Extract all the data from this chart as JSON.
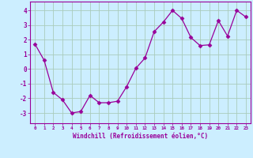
{
  "x": [
    0,
    1,
    2,
    3,
    4,
    5,
    6,
    7,
    8,
    9,
    10,
    11,
    12,
    13,
    14,
    15,
    16,
    17,
    18,
    19,
    20,
    21,
    22,
    23
  ],
  "y": [
    1.7,
    0.6,
    -1.6,
    -2.1,
    -3.0,
    -2.9,
    -1.8,
    -2.3,
    -2.3,
    -2.2,
    -1.2,
    0.05,
    0.75,
    2.55,
    3.2,
    4.0,
    3.45,
    2.15,
    1.6,
    1.65,
    3.3,
    2.25,
    4.0,
    3.55
  ],
  "line_color": "#990099",
  "marker": "D",
  "marker_size": 2.5,
  "bg_color": "#cceeff",
  "grid_color": "#aaccbb",
  "xlabel": "Windchill (Refroidissement éolien,°C)",
  "xlabel_color": "#990099",
  "tick_color": "#990099",
  "ylabel_ticks": [
    -3,
    -2,
    -1,
    0,
    1,
    2,
    3,
    4
  ],
  "xlim": [
    -0.5,
    23.5
  ],
  "ylim": [
    -3.7,
    4.6
  ],
  "xtick_labels": [
    "0",
    "1",
    "2",
    "3",
    "4",
    "5",
    "6",
    "7",
    "8",
    "9",
    "10",
    "11",
    "12",
    "13",
    "14",
    "15",
    "16",
    "17",
    "18",
    "19",
    "20",
    "21",
    "22",
    "23"
  ]
}
